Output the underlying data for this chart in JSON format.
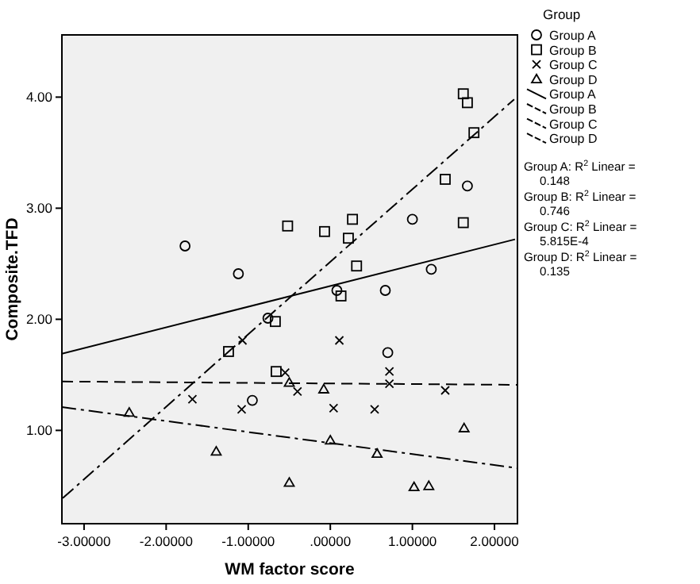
{
  "chart_data": {
    "type": "scatter",
    "xlabel": "WM factor score",
    "ylabel": "Composite.TFD",
    "legend_title": "Group",
    "legend": "right",
    "grid": false,
    "xlim": [
      -3.27,
      2.28
    ],
    "xticks": [
      {
        "value": -3,
        "label": "-3.00000"
      },
      {
        "value": -2,
        "label": "-2.00000"
      },
      {
        "value": -1,
        "label": "-1.00000"
      },
      {
        "value": 0,
        "label": ".00000"
      },
      {
        "value": 1,
        "label": "1.00000"
      },
      {
        "value": 2,
        "label": "2.00000"
      }
    ],
    "ylim": [
      0.16,
      4.56
    ],
    "yticks": [
      {
        "value": 1,
        "label": "1.00"
      },
      {
        "value": 2,
        "label": "2.00"
      },
      {
        "value": 3,
        "label": "3.00"
      },
      {
        "value": 4,
        "label": "4.00"
      }
    ],
    "series": [
      {
        "name": "Group A",
        "marker": "circle",
        "color": "#000000",
        "x": [
          -1.77,
          -1.12,
          -0.76,
          -0.95,
          0.08,
          0.67,
          0.7,
          1.0,
          1.23,
          1.67
        ],
        "values": [
          2.66,
          2.41,
          2.01,
          1.27,
          2.26,
          2.26,
          1.7,
          2.9,
          2.45,
          3.2
        ]
      },
      {
        "name": "Group B",
        "marker": "square",
        "color": "#000000",
        "x": [
          -0.52,
          -0.07,
          0.27,
          0.22,
          0.32,
          0.13,
          -0.67,
          -1.24,
          -0.66,
          1.62,
          1.67,
          1.75,
          1.4,
          1.62
        ],
        "values": [
          2.84,
          2.79,
          2.9,
          2.73,
          2.48,
          2.21,
          1.98,
          1.71,
          1.53,
          4.03,
          3.95,
          3.68,
          3.26,
          2.87
        ]
      },
      {
        "name": "Group C",
        "marker": "cross",
        "color": "#000000",
        "x": [
          -1.07,
          0.11,
          -0.55,
          -0.4,
          -1.68,
          -1.08,
          0.04,
          0.72,
          0.72,
          1.4,
          0.54
        ],
        "values": [
          1.81,
          1.81,
          1.52,
          1.35,
          1.28,
          1.19,
          1.2,
          1.53,
          1.42,
          1.36,
          1.19
        ]
      },
      {
        "name": "Group D",
        "marker": "triangle",
        "color": "#000000",
        "x": [
          -2.45,
          -1.39,
          -0.5,
          -0.5,
          -0.08,
          0.0,
          0.57,
          1.02,
          1.2,
          1.63
        ],
        "values": [
          1.16,
          0.81,
          0.53,
          1.43,
          1.37,
          0.91,
          0.79,
          0.49,
          0.5,
          1.02
        ]
      },
      {
        "name": "Group A",
        "type": "line",
        "line_style": "solid",
        "color": "#000000",
        "x": [
          -3.27,
          2.25
        ],
        "values": [
          1.69,
          2.72
        ]
      },
      {
        "name": "Group B",
        "type": "line",
        "line_style": "dashdot",
        "color": "#000000",
        "x": [
          -3.26,
          2.24
        ],
        "values": [
          0.39,
          3.98
        ]
      },
      {
        "name": "Group C",
        "type": "line",
        "line_style": "dashed",
        "color": "#000000",
        "x": [
          -3.27,
          2.28
        ],
        "values": [
          1.44,
          1.41
        ]
      },
      {
        "name": "Group D",
        "type": "line",
        "line_style": "dashdot",
        "color": "#000000",
        "x": [
          -3.27,
          2.28
        ],
        "values": [
          1.21,
          0.66
        ]
      }
    ],
    "annotations": [
      "Group A: R$^{2}$ Linear = 0.148",
      "Group B: R$^{2}$ Linear = 0.746",
      "Group C: R$^{2}$ Linear = 5.815E-4",
      "Group D: R$^{2}$ Linear = 0.135"
    ]
  }
}
